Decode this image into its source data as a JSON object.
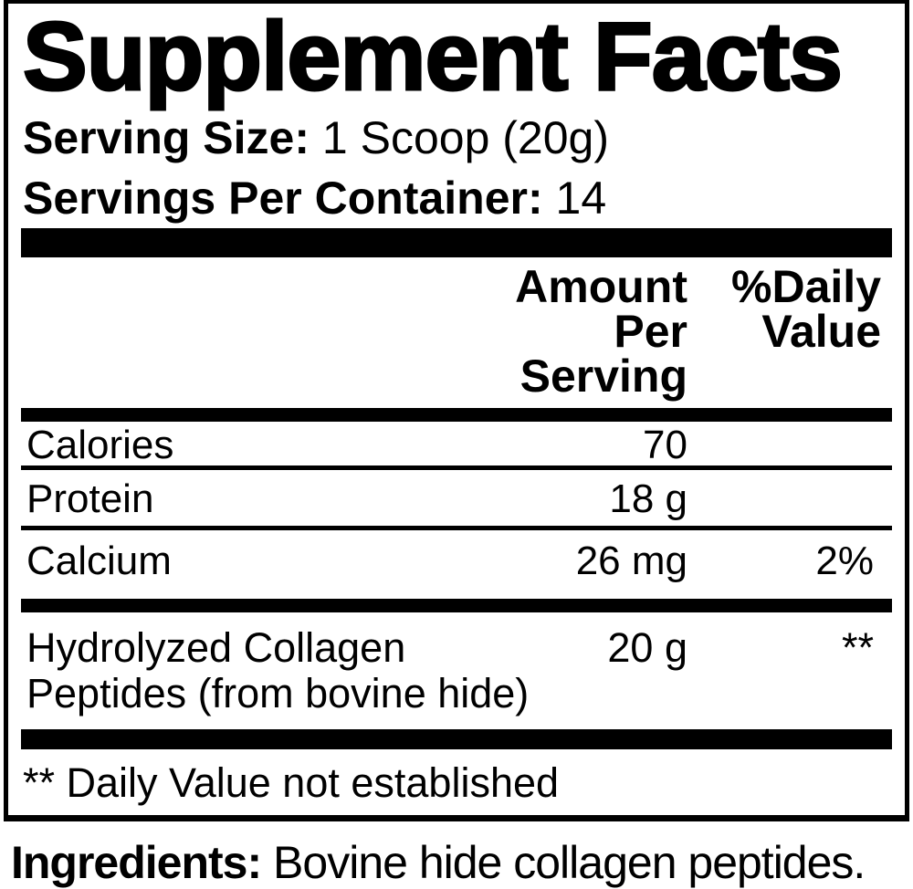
{
  "label": {
    "title": "Supplement Facts",
    "serving": {
      "size_label": "Serving Size:",
      "size_value": "1 Scoop (20g)",
      "per_container_label": "Servings Per Container:",
      "per_container_value": "14"
    },
    "columns": {
      "amount_header_line1": "Amount Per",
      "amount_header_line2": "Serving",
      "dv_header_line1": "%Daily",
      "dv_header_line2": "Value"
    },
    "rows": [
      {
        "name": "Calories",
        "amount": "70",
        "daily_value": ""
      },
      {
        "name": "Protein",
        "amount": "18 g",
        "daily_value": ""
      },
      {
        "name": "Calcium",
        "amount": "26 mg",
        "daily_value": "2%"
      },
      {
        "name": "Hydrolyzed Collagen Peptides (from bovine hide)",
        "name_line1": "Hydrolyzed Collagen",
        "name_line2": "Peptides (from bovine hide)",
        "amount": "20 g",
        "daily_value": "**"
      }
    ],
    "footnote": "** Daily Value not established",
    "ingredients": {
      "label": "Ingredients:",
      "value": "Bovine hide collagen peptides."
    },
    "colors": {
      "text": "#000000",
      "background": "#ffffff"
    }
  }
}
